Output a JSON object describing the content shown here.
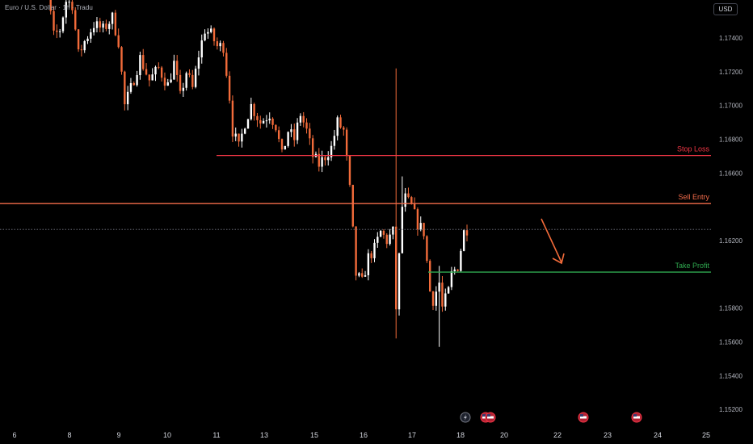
{
  "header": {
    "title": "Euro / U.S. Dollar · 1h · Tradu",
    "currency": "USD"
  },
  "colors": {
    "background": "#000000",
    "candle_up": "#ffffff",
    "candle_down": "#f26b3a",
    "stop_loss": "#f23645",
    "sell_entry": "#f26b4a",
    "take_profit": "#2fa84f",
    "price_line": "#787b86",
    "arrow": "#f26b3a"
  },
  "chart_data": {
    "type": "candlestick",
    "symbol": "EURUSD",
    "timeframe": "1h",
    "yaxis_ticks": [
      "1.17400",
      "1.17200",
      "1.17000",
      "1.16800",
      "1.16600",
      "1.16200",
      "1.15800",
      "1.15600",
      "1.15400",
      "1.15200"
    ],
    "xaxis_ticks": [
      "6",
      "8",
      "9",
      "10",
      "11",
      "13",
      "15",
      "16",
      "17",
      "18",
      "20",
      "22",
      "23",
      "24",
      "25"
    ],
    "ylim": [
      1.151,
      1.17625
    ],
    "current_price": 1.16266,
    "levels": [
      {
        "name": "Stop Loss",
        "value": 1.16704,
        "label": "1.16704"
      },
      {
        "name": "Sell Entry",
        "value": 1.16419,
        "label": "1.16419"
      },
      {
        "name": "Take Profit",
        "value": 1.16013,
        "label": "1.16013"
      }
    ],
    "current_label": "1.16266",
    "series_path": [
      [
        0,
        1.177
      ],
      [
        3,
        1.1772
      ],
      [
        6,
        1.1766
      ],
      [
        8,
        1.1741
      ],
      [
        10,
        1.1745
      ],
      [
        12,
        1.1762
      ],
      [
        14,
        1.176
      ],
      [
        16,
        1.173
      ],
      [
        18,
        1.1738
      ],
      [
        21,
        1.1748
      ],
      [
        24,
        1.1745
      ],
      [
        27,
        1.1752
      ],
      [
        29,
        1.1738
      ],
      [
        31,
        1.17
      ],
      [
        33,
        1.171
      ],
      [
        36,
        1.1728
      ],
      [
        39,
        1.1715
      ],
      [
        42,
        1.1722
      ],
      [
        45,
        1.1712
      ],
      [
        47,
        1.1725
      ],
      [
        49,
        1.1705
      ],
      [
        51,
        1.172
      ],
      [
        53,
        1.171
      ],
      [
        55,
        1.173
      ],
      [
        57,
        1.1745
      ],
      [
        59,
        1.1742
      ],
      [
        61,
        1.1735
      ],
      [
        63,
        1.1735
      ],
      [
        65,
        1.1705
      ],
      [
        66,
        1.1685
      ],
      [
        68,
        1.1675
      ],
      [
        70,
        1.169
      ],
      [
        72,
        1.17
      ],
      [
        75,
        1.169
      ],
      [
        78,
        1.1695
      ],
      [
        80,
        1.1688
      ],
      [
        82,
        1.167
      ],
      [
        84,
        1.1685
      ],
      [
        86,
        1.168
      ],
      [
        88,
        1.1695
      ],
      [
        90,
        1.1685
      ],
      [
        92,
        1.167
      ],
      [
        94,
        1.1665
      ],
      [
        96,
        1.167
      ],
      [
        98,
        1.1675
      ],
      [
        100,
        1.169
      ],
      [
        102,
        1.1685
      ],
      [
        104,
        1.165
      ],
      [
        105,
        1.1625
      ],
      [
        106,
        1.16
      ],
      [
        108,
        1.1595
      ],
      [
        110,
        1.161
      ],
      [
        112,
        1.1615
      ],
      [
        114,
        1.1625
      ],
      [
        116,
        1.162
      ],
      [
        118,
        1.1625
      ],
      [
        119,
        1.158
      ],
      [
        120,
        1.161
      ],
      [
        121,
        1.164
      ],
      [
        122,
        1.1645
      ],
      [
        124,
        1.164
      ],
      [
        126,
        1.163
      ],
      [
        128,
        1.1625
      ],
      [
        130,
        1.159
      ],
      [
        131,
        1.1585
      ],
      [
        133,
        1.1595
      ],
      [
        134,
        1.158
      ],
      [
        135,
        1.1585
      ],
      [
        136,
        1.159
      ],
      [
        137,
        1.16
      ],
      [
        139,
        1.1605
      ],
      [
        140,
        1.1615
      ],
      [
        141,
        1.1625
      ],
      [
        142,
        1.1627
      ]
    ],
    "spikes": [
      {
        "i": 119,
        "low": 1.1562,
        "high": 1.1722
      },
      {
        "i": 121,
        "low": 1.1618,
        "high": 1.1658
      },
      {
        "i": 133,
        "low": 1.1557,
        "high": 1.1605
      }
    ],
    "n_candles": 143,
    "annotation_arrow": "down-right arrow toward Take Profit"
  },
  "event_icons": [
    "lightning-icon",
    "us-flag-icon",
    "us-flag-icon",
    "us-flag-icon",
    "us-flag-icon"
  ]
}
